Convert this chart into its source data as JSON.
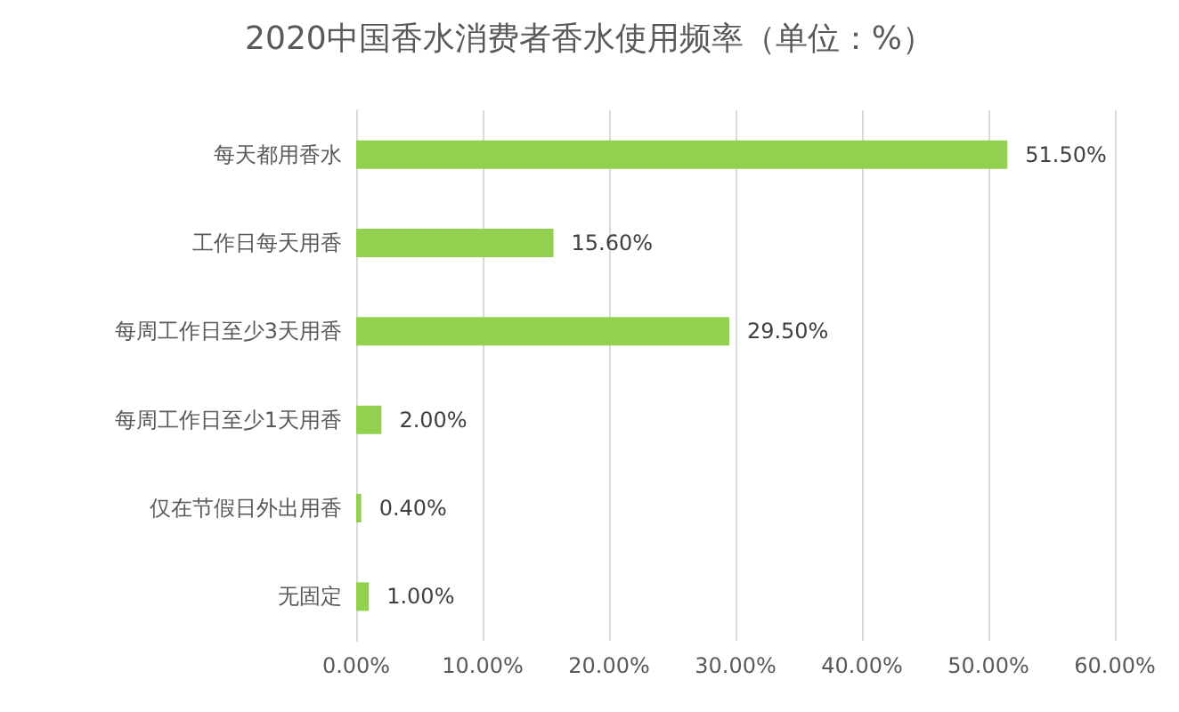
{
  "chart_data": {
    "type": "bar",
    "title": "2020中国香水消费者香水使用频率（单位：%）",
    "orientation": "horizontal",
    "categories": [
      "每天都用香水",
      "工作日每天用香",
      "每周工作日至少3天用香",
      "每周工作日至少1天用香",
      "仅在节假日外出用香",
      "无固定"
    ],
    "values": [
      51.5,
      15.6,
      29.5,
      2.0,
      0.4,
      1.0
    ],
    "value_labels": [
      "51.50%",
      "15.60%",
      "29.50%",
      "2.00%",
      "0.40%",
      "1.00%"
    ],
    "color": "#92d050",
    "xlim": [
      0,
      60
    ],
    "xticks": [
      {
        "value": 0,
        "label": "0.00%"
      },
      {
        "value": 10,
        "label": "10.00%"
      },
      {
        "value": 20,
        "label": "20.00%"
      },
      {
        "value": 30,
        "label": "30.00%"
      },
      {
        "value": 40,
        "label": "40.00%"
      },
      {
        "value": 50,
        "label": "50.00%"
      },
      {
        "value": 60,
        "label": "60.00%"
      }
    ],
    "grid": "x"
  }
}
